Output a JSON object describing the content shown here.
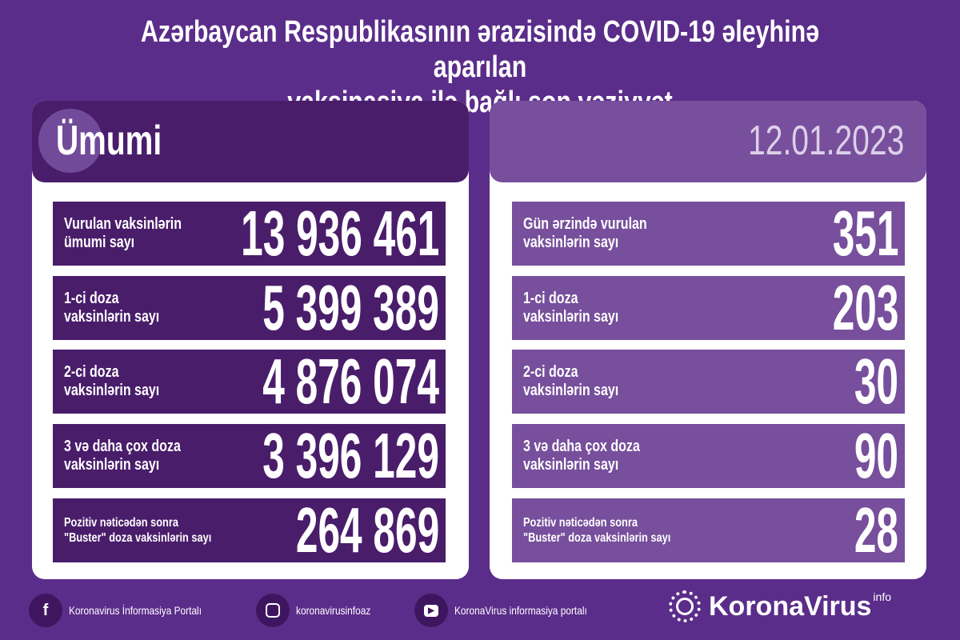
{
  "title_line1": "Azərbaycan Respublikasının ərazisində COVID-19 əleyhinə aparılan",
  "title_line2": "vaksinasiya ilə bağlı son vəziyyət",
  "left": {
    "heading": "Ümumi",
    "rows": [
      {
        "label": "Vurulan vaksinlərin\nümumi sayı",
        "value": "13 936 461"
      },
      {
        "label": "1-ci doza\nvaksinlərin sayı",
        "value": "5 399 389"
      },
      {
        "label": "2-ci doza\nvaksinlərin sayı",
        "value": "4 876 074"
      },
      {
        "label": "3 və daha çox doza\nvaksinlərin sayı",
        "value": "3 396 129"
      },
      {
        "label": "Pozitiv nəticədən sonra\n\"Buster\" doza vaksinlərin sayı",
        "value": "264 869"
      }
    ]
  },
  "right": {
    "heading": "12.01.2023",
    "rows": [
      {
        "label": "Gün ərzində vurulan\nvaksinlərin sayı",
        "value": "351"
      },
      {
        "label": "1-ci doza\nvaksinlərin sayı",
        "value": "203"
      },
      {
        "label": "2-ci doza\nvaksinlərin sayı",
        "value": "30"
      },
      {
        "label": "3 və daha çox doza\nvaksinlərin sayı",
        "value": "90"
      },
      {
        "label": "Pozitiv nəticədən sonra\n\"Buster\" doza vaksinlərin sayı",
        "value": "28"
      }
    ]
  },
  "footer": {
    "facebook": "Koronavirus İnformasiya Portalı",
    "instagram": "koronavirusinfoaz",
    "youtube": "KoronaVirus informasiya portalı",
    "logo": "KoronaVirus",
    "logo_sup": "info"
  },
  "colors": {
    "background": "#5b2d8a",
    "dark_row": "#4a1d6b",
    "light_row": "#774f9c"
  }
}
